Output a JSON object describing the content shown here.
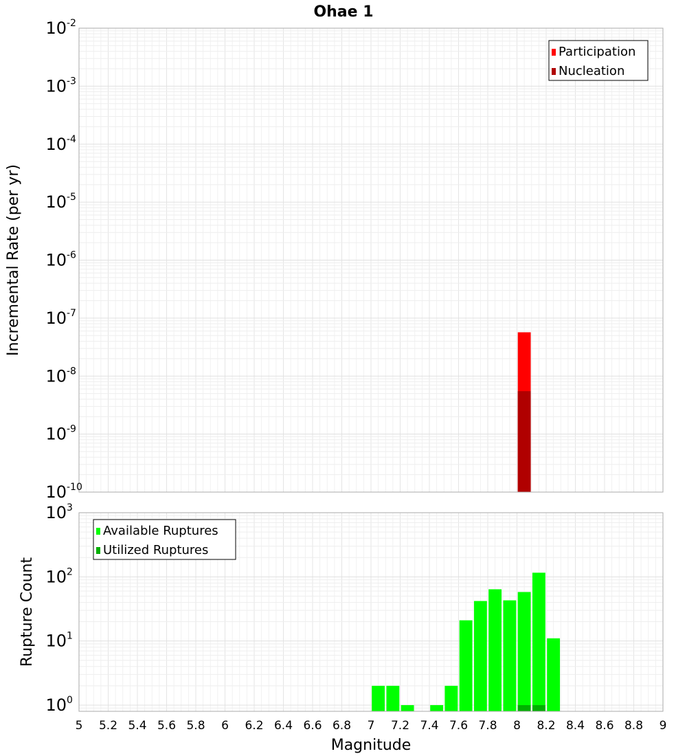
{
  "chart_data": [
    {
      "type": "bar",
      "title": "Ohae 1",
      "xlabel": "Magnitude",
      "ylabel": "Incremental Rate (per yr)",
      "yscale": "log",
      "xlim": [
        5,
        9
      ],
      "ylim": [
        1e-10,
        0.01
      ],
      "y_tick_exponents": [
        -10,
        -9,
        -8,
        -7,
        -6,
        -5,
        -4,
        -3,
        -2
      ],
      "grid": true,
      "legend_position": "top-right",
      "bar_width": 0.1,
      "series": [
        {
          "name": "Participation",
          "color": "#ff0000",
          "x": [
            8.05
          ],
          "values": [
            5.7e-08
          ]
        },
        {
          "name": "Nucleation",
          "color": "#b00000",
          "x": [
            8.05
          ],
          "values": [
            5.5e-09
          ]
        }
      ]
    },
    {
      "type": "bar",
      "xlabel": "Magnitude",
      "ylabel": "Rupture Count",
      "yscale": "log",
      "xlim": [
        5,
        9
      ],
      "ylim": [
        0.8,
        1000
      ],
      "y_tick_exponents": [
        0,
        1,
        2,
        3
      ],
      "x_ticks": [
        "5",
        "5.2",
        "5.4",
        "5.6",
        "5.8",
        "6",
        "6.2",
        "6.4",
        "6.6",
        "6.8",
        "7",
        "7.2",
        "7.4",
        "7.6",
        "7.8",
        "8",
        "8.2",
        "8.4",
        "8.6",
        "8.8",
        "9"
      ],
      "grid": true,
      "legend_position": "top-left",
      "bar_width": 0.1,
      "series": [
        {
          "name": "Available Ruptures",
          "color": "#00ff00",
          "x": [
            7.05,
            7.15,
            7.25,
            7.45,
            7.55,
            7.65,
            7.75,
            7.85,
            7.95,
            8.05,
            8.15,
            8.25
          ],
          "values": [
            2,
            2,
            1,
            1,
            2,
            21,
            42,
            64,
            43,
            58,
            116,
            11
          ]
        },
        {
          "name": "Utilized Ruptures",
          "color": "#00b000",
          "x": [
            8.05,
            8.15
          ],
          "values": [
            1,
            1
          ]
        }
      ]
    }
  ]
}
